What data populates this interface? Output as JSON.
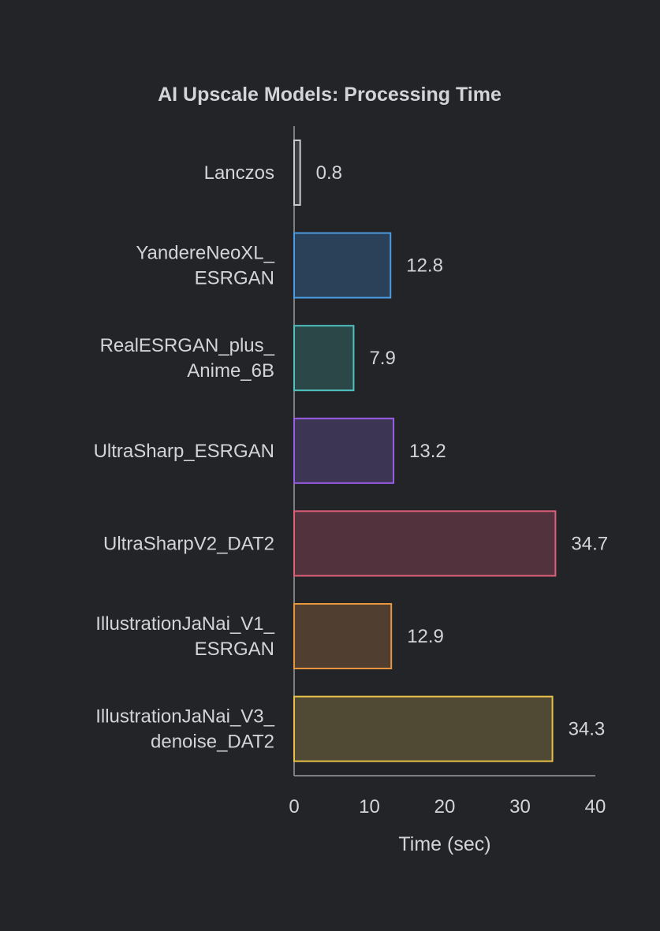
{
  "chart_data": {
    "type": "bar",
    "orientation": "horizontal",
    "title": "AI Upscale Models: Processing Time",
    "xlabel": "Time (sec)",
    "ylabel": "",
    "xlim": [
      0,
      40
    ],
    "xticks": [
      "0",
      "10",
      "20",
      "30",
      "40"
    ],
    "grid": false,
    "categories": [
      [
        "Lanczos"
      ],
      [
        "YandereNeoXL_",
        "ESRGAN"
      ],
      [
        "RealESRGAN_plus_",
        "Anime_6B"
      ],
      [
        "UltraSharp_ESRGAN"
      ],
      [
        "UltraSharpV2_DAT2"
      ],
      [
        "IllustrationJaNai_V1_",
        "ESRGAN"
      ],
      [
        "IllustrationJaNai_V3_",
        "denoise_DAT2"
      ]
    ],
    "values": [
      0.8,
      12.8,
      7.9,
      13.2,
      34.7,
      12.9,
      34.3
    ],
    "value_labels": [
      "0.8",
      "12.8",
      "7.9",
      "13.2",
      "34.7",
      "12.9",
      "34.3"
    ],
    "colors": {
      "background": "#222427",
      "axis": "#9a9da1",
      "text": "#d2d4d7",
      "bar_edges": [
        "#c9cacc",
        "#4a9be0",
        "#4fc2c0",
        "#9b5de8",
        "#e0607a",
        "#e8963e",
        "#e8c04a"
      ],
      "bar_fills": [
        "#3a3c3f",
        "#2b4059",
        "#2b4748",
        "#3c3553",
        "#52323c",
        "#503f30",
        "#504a34"
      ]
    }
  }
}
